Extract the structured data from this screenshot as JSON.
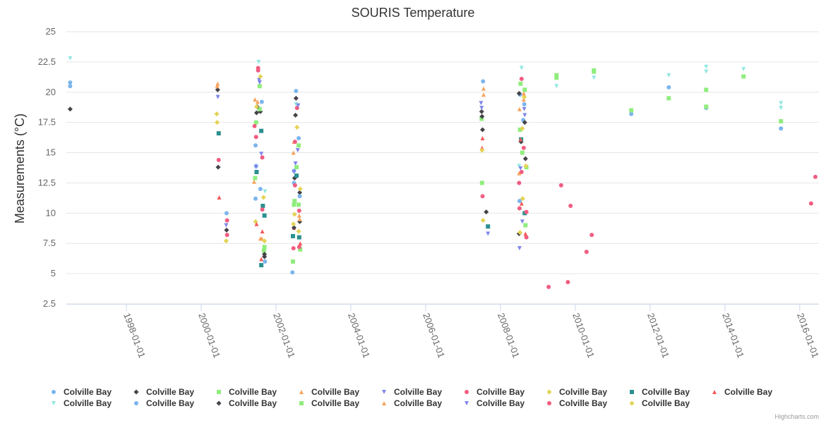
{
  "chart_data": {
    "type": "scatter",
    "title": "SOURIS Temperature",
    "ylabel": "Measurements (°C)",
    "xlabel": "",
    "ylim": [
      2.5,
      25
    ],
    "yticks": [
      2.5,
      5,
      7.5,
      10,
      12.5,
      15,
      17.5,
      20,
      22.5,
      25
    ],
    "ytick_labels": [
      "2.5",
      "5",
      "7.5",
      "10",
      "12.5",
      "15",
      "17.5",
      "20",
      "22.5",
      "25"
    ],
    "x_is_date": true,
    "xlim": [
      "1996-05-25",
      "2016-07-06"
    ],
    "xticks": [
      "1998-01-01",
      "2000-01-01",
      "2002-01-01",
      "2004-01-01",
      "2006-01-01",
      "2008-01-01",
      "2010-01-01",
      "2012-01-01",
      "2014-01-01",
      "2016-01-01"
    ],
    "legend_position": "bottom",
    "grid": "horizontal",
    "credits": "Highcharts.com",
    "series": [
      {
        "name": "Colville Bay",
        "color": "#7cb5ec",
        "marker": "circle",
        "points": [
          [
            "1996-07-01",
            20.8
          ],
          [
            "1996-07-01",
            20.5
          ],
          [
            "2001-06-15",
            15.6
          ],
          [
            "2001-06-20",
            13.9
          ],
          [
            "2001-08-01",
            12.0
          ],
          [
            "2001-09-15",
            6.0
          ],
          [
            "2002-06-25",
            12.5
          ],
          [
            "2002-07-15",
            20.1
          ],
          [
            "2002-08-10",
            16.2
          ],
          [
            "2007-07-15",
            20.9
          ],
          [
            "2008-07-10",
            19.8
          ],
          [
            "2008-08-10",
            17.7
          ],
          [
            "2011-07-01",
            18.2
          ],
          [
            "2012-07-01",
            20.4
          ],
          [
            "2013-07-01",
            18.7
          ],
          [
            "2015-07-01",
            17.0
          ]
        ]
      },
      {
        "name": "Colville Bay",
        "color": "#434348",
        "marker": "diamond",
        "points": [
          [
            "1996-07-01",
            18.6
          ],
          [
            "2000-06-10",
            20.2
          ],
          [
            "2000-06-15",
            13.8
          ],
          [
            "2001-06-25",
            18.3
          ],
          [
            "2001-08-01",
            18.4
          ],
          [
            "2001-09-10",
            6.4
          ],
          [
            "2002-07-01",
            12.9
          ],
          [
            "2002-07-15",
            19.5
          ],
          [
            "2002-08-20",
            11.7
          ],
          [
            "2007-07-01",
            18.4
          ],
          [
            "2007-07-10",
            16.9
          ],
          [
            "2007-08-15",
            10.1
          ],
          [
            "2008-07-01",
            19.9
          ],
          [
            "2008-07-20",
            15.9
          ],
          [
            "2008-08-25",
            17.5
          ]
        ]
      },
      {
        "name": "Colville Bay",
        "color": "#90ed7d",
        "marker": "square",
        "points": [
          [
            "2001-06-20",
            17.5
          ],
          [
            "2001-07-25",
            18.6
          ],
          [
            "2001-09-05",
            6.9
          ],
          [
            "2002-06-15",
            6.0
          ],
          [
            "2002-07-01",
            11.0
          ],
          [
            "2002-07-20",
            13.8
          ],
          [
            "2002-08-10",
            15.6
          ],
          [
            "2007-07-01",
            17.8
          ],
          [
            "2007-07-05",
            12.5
          ],
          [
            "2008-07-15",
            20.7
          ],
          [
            "2008-08-01",
            15.0
          ],
          [
            "2008-09-01",
            9.0
          ],
          [
            "2009-07-01",
            21.2
          ],
          [
            "2010-07-01",
            21.8
          ],
          [
            "2011-07-01",
            18.5
          ],
          [
            "2012-07-01",
            19.5
          ],
          [
            "2013-07-01",
            20.2
          ],
          [
            "2015-07-01",
            17.6
          ]
        ]
      },
      {
        "name": "Colville Bay",
        "color": "#f7a35c",
        "marker": "triangle",
        "points": [
          [
            "2000-06-10",
            20.7
          ],
          [
            "2001-06-01",
            12.6
          ],
          [
            "2001-07-05",
            19.2
          ],
          [
            "2001-08-15",
            7.9
          ],
          [
            "2002-06-20",
            15.0
          ],
          [
            "2002-08-15",
            9.8
          ],
          [
            "2007-07-20",
            20.3
          ],
          [
            "2008-07-05",
            18.6
          ],
          [
            "2008-08-15",
            19.4
          ]
        ]
      },
      {
        "name": "Colville Bay",
        "color": "#8085e9",
        "marker": "triangle-down",
        "points": [
          [
            "2000-06-12",
            19.6
          ],
          [
            "2001-07-20",
            21.0
          ],
          [
            "2001-08-10",
            14.9
          ],
          [
            "2002-07-10",
            14.1
          ],
          [
            "2002-08-01",
            15.2
          ],
          [
            "2007-06-25",
            19.1
          ],
          [
            "2008-07-05",
            7.1
          ],
          [
            "2008-08-01",
            9.3
          ],
          [
            "2008-08-20",
            18.6
          ]
        ]
      },
      {
        "name": "Colville Bay",
        "color": "#f15c80",
        "marker": "circle",
        "points": [
          [
            "2000-06-20",
            14.4
          ],
          [
            "2000-09-10",
            9.4
          ],
          [
            "2001-06-05",
            17.2
          ],
          [
            "2001-07-10",
            22.0
          ],
          [
            "2001-08-20",
            14.6
          ],
          [
            "2002-07-05",
            12.3
          ],
          [
            "2002-07-25",
            18.7
          ],
          [
            "2002-08-15",
            10.2
          ],
          [
            "2007-07-10",
            11.4
          ],
          [
            "2008-07-01",
            12.5
          ],
          [
            "2008-07-25",
            21.1
          ],
          [
            "2008-09-10",
            8.0
          ],
          [
            "2009-04-15",
            3.9
          ],
          [
            "2009-08-15",
            12.3
          ],
          [
            "2009-10-20",
            4.3
          ],
          [
            "2009-11-15",
            10.6
          ],
          [
            "2010-04-20",
            6.8
          ],
          [
            "2010-06-10",
            8.2
          ],
          [
            "2016-04-20",
            10.8
          ],
          [
            "2016-06-01",
            13.0
          ]
        ]
      },
      {
        "name": "Colville Bay",
        "color": "#e4d354",
        "marker": "diamond",
        "points": [
          [
            "2000-06-01",
            18.2
          ],
          [
            "2000-06-05",
            17.5
          ],
          [
            "2000-09-01",
            7.7
          ],
          [
            "2001-06-15",
            9.3
          ],
          [
            "2001-08-01",
            21.3
          ],
          [
            "2001-09-10",
            7.7
          ],
          [
            "2002-07-01",
            9.9
          ],
          [
            "2002-08-10",
            8.5
          ],
          [
            "2007-07-15",
            9.4
          ],
          [
            "2008-08-05",
            11.2
          ],
          [
            "2008-08-20",
            19.6
          ]
        ]
      },
      {
        "name": "Colville Bay",
        "color": "#2b908f",
        "marker": "square",
        "points": [
          [
            "2000-06-20",
            16.6
          ],
          [
            "2001-06-25",
            13.4
          ],
          [
            "2001-08-10",
            16.8
          ],
          [
            "2001-08-25",
            10.6
          ],
          [
            "2001-08-10",
            5.7
          ],
          [
            "2001-09-10",
            9.8
          ],
          [
            "2002-06-15",
            8.1
          ],
          [
            "2002-07-20",
            13.1
          ],
          [
            "2002-08-15",
            8.0
          ],
          [
            "2007-09-01",
            8.9
          ],
          [
            "2008-07-20",
            16.1
          ],
          [
            "2008-08-25",
            10.0
          ]
        ]
      },
      {
        "name": "Colville Bay",
        "color": "#f45b5b",
        "marker": "triangle",
        "points": [
          [
            "2000-06-25",
            11.3
          ],
          [
            "2001-06-25",
            9.1
          ],
          [
            "2001-08-20",
            8.5
          ],
          [
            "2001-08-10",
            6.2
          ],
          [
            "2002-06-25",
            8.8
          ],
          [
            "2002-08-25",
            7.5
          ],
          [
            "2007-07-10",
            16.2
          ],
          [
            "2007-07-05",
            15.4
          ],
          [
            "2008-07-15",
            16.1
          ],
          [
            "2008-07-25",
            10.8
          ],
          [
            "2008-09-01",
            8.3
          ]
        ]
      },
      {
        "name": "Colville Bay",
        "color": "#91e8e1",
        "marker": "triangle-down",
        "points": [
          [
            "1996-07-01",
            22.8
          ],
          [
            "2001-07-15",
            22.5
          ],
          [
            "2001-09-15",
            11.8
          ],
          [
            "2002-07-15",
            19.0
          ],
          [
            "2008-07-25",
            22.0
          ],
          [
            "2008-07-01",
            13.9
          ],
          [
            "2009-07-01",
            20.5
          ],
          [
            "2010-07-01",
            21.2
          ],
          [
            "2012-07-01",
            21.4
          ],
          [
            "2013-07-01",
            22.1
          ],
          [
            "2013-07-01",
            21.7
          ],
          [
            "2014-07-01",
            21.9
          ],
          [
            "2015-07-01",
            19.1
          ],
          [
            "2015-07-01",
            18.7
          ]
        ]
      },
      {
        "name": "Colville Bay",
        "color": "#7cb5ec",
        "marker": "circle",
        "points": [
          [
            "2000-09-05",
            10.0
          ],
          [
            "2001-06-15",
            11.2
          ],
          [
            "2001-08-15",
            19.2
          ],
          [
            "2002-06-10",
            5.1
          ],
          [
            "2002-06-25",
            13.5
          ],
          [
            "2002-08-20",
            11.4
          ],
          [
            "2008-07-05",
            11.0
          ],
          [
            "2008-08-20",
            19.0
          ]
        ]
      },
      {
        "name": "Colville Bay",
        "color": "#434348",
        "marker": "diamond",
        "points": [
          [
            "2000-09-05",
            8.6
          ],
          [
            "2001-07-01",
            18.8
          ],
          [
            "2001-09-10",
            6.6
          ],
          [
            "2002-06-25",
            8.8
          ],
          [
            "2002-07-10",
            18.1
          ],
          [
            "2002-08-20",
            9.3
          ],
          [
            "2007-07-05",
            18.0
          ],
          [
            "2008-07-01",
            8.3
          ],
          [
            "2008-09-01",
            14.5
          ]
        ]
      },
      {
        "name": "Colville Bay",
        "color": "#90ed7d",
        "marker": "square",
        "points": [
          [
            "2001-06-10",
            12.9
          ],
          [
            "2001-07-25",
            20.5
          ],
          [
            "2001-09-10",
            7.2
          ],
          [
            "2002-06-25",
            10.7
          ],
          [
            "2002-08-10",
            10.7
          ],
          [
            "2002-08-25",
            7.0
          ],
          [
            "2008-07-10",
            16.9
          ],
          [
            "2008-08-25",
            20.2
          ],
          [
            "2008-09-10",
            13.8
          ],
          [
            "2009-07-01",
            21.4
          ],
          [
            "2010-07-01",
            21.7
          ],
          [
            "2013-07-01",
            18.8
          ],
          [
            "2014-07-01",
            21.3
          ]
        ]
      },
      {
        "name": "Colville Bay",
        "color": "#f7a35c",
        "marker": "triangle",
        "points": [
          [
            "2000-06-05",
            20.5
          ],
          [
            "2001-06-10",
            19.4
          ],
          [
            "2001-08-01",
            7.9
          ],
          [
            "2002-06-25",
            15.9
          ],
          [
            "2002-08-20",
            9.5
          ],
          [
            "2007-07-20",
            19.8
          ],
          [
            "2008-07-01",
            13.3
          ],
          [
            "2008-08-15",
            19.9
          ]
        ]
      },
      {
        "name": "Colville Bay",
        "color": "#8085e9",
        "marker": "triangle-down",
        "points": [
          [
            "2000-09-01",
            9.0
          ],
          [
            "2001-06-20",
            13.8
          ],
          [
            "2001-07-25",
            20.8
          ],
          [
            "2002-06-25",
            13.4
          ],
          [
            "2002-08-05",
            18.9
          ],
          [
            "2007-07-01",
            18.7
          ],
          [
            "2007-09-01",
            8.3
          ],
          [
            "2008-07-15",
            13.7
          ],
          [
            "2008-08-25",
            18.1
          ]
        ]
      },
      {
        "name": "Colville Bay",
        "color": "#f15c80",
        "marker": "circle",
        "points": [
          [
            "2000-09-10",
            8.2
          ],
          [
            "2001-06-20",
            16.3
          ],
          [
            "2001-07-10",
            21.8
          ],
          [
            "2001-08-20",
            10.3
          ],
          [
            "2002-06-20",
            7.1
          ],
          [
            "2002-07-05",
            15.9
          ],
          [
            "2002-08-15",
            7.2
          ],
          [
            "2008-07-05",
            10.4
          ],
          [
            "2008-07-25",
            13.4
          ],
          [
            "2008-08-15",
            15.4
          ],
          [
            "2008-09-10",
            10.1
          ]
        ]
      },
      {
        "name": "Colville Bay",
        "color": "#e4d354",
        "marker": "diamond",
        "points": [
          [
            "2001-06-25",
            18.8
          ],
          [
            "2001-09-01",
            11.3
          ],
          [
            "2002-06-20",
            9.1
          ],
          [
            "2002-07-25",
            17.1
          ],
          [
            "2002-08-25",
            12.0
          ],
          [
            "2007-07-05",
            15.2
          ],
          [
            "2008-07-10",
            8.4
          ],
          [
            "2008-08-01",
            17.0
          ],
          [
            "2008-09-05",
            13.9
          ]
        ]
      }
    ]
  }
}
